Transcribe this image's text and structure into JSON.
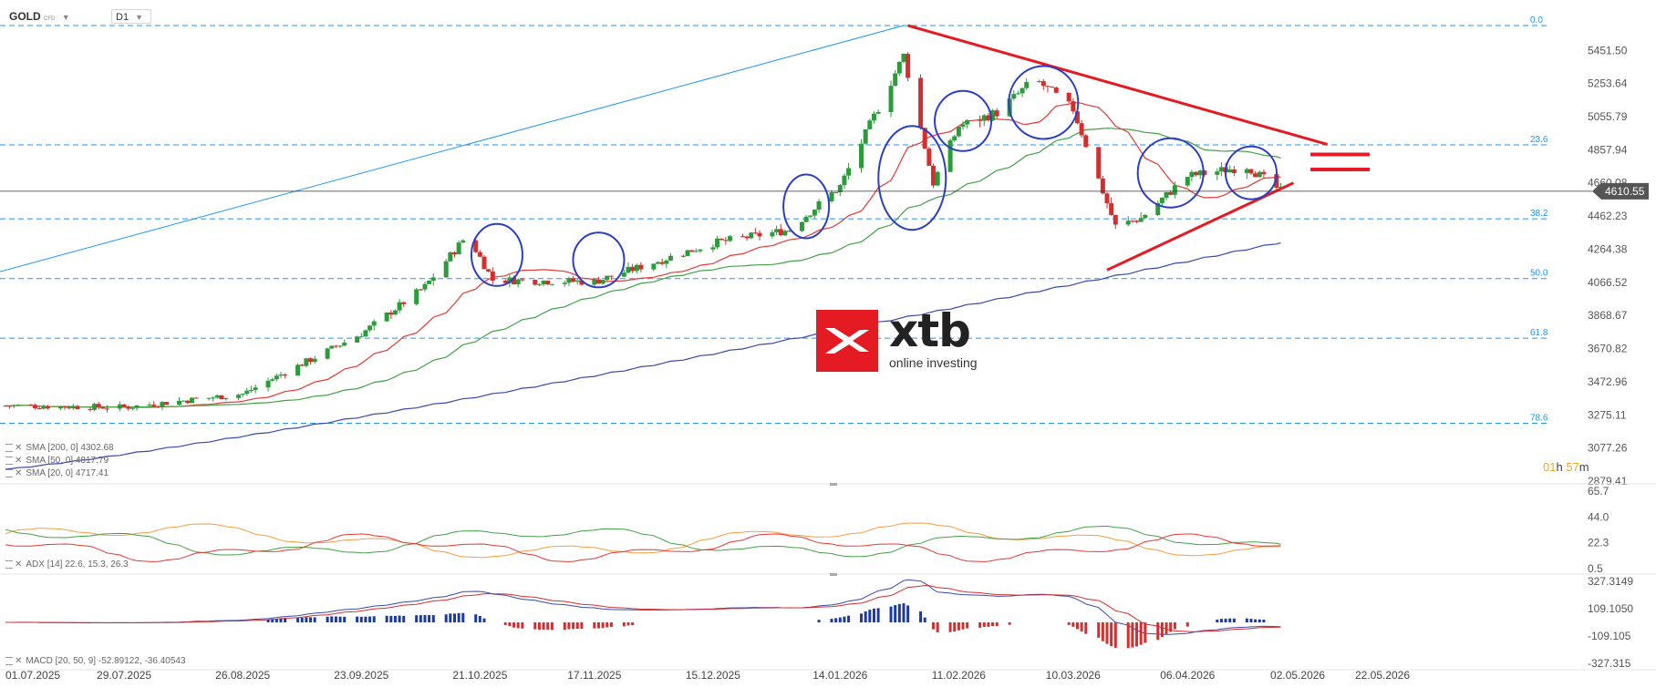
{
  "header": {
    "symbol": "GOLD",
    "symbol_tag": "CFD",
    "timeframe": "D1"
  },
  "price_axis": {
    "labels": [
      "5451.50",
      "5253.64",
      "5055.79",
      "4857.94",
      "4660.08",
      "4462.23",
      "4264.38",
      "4066.52",
      "3868.67",
      "3670.82",
      "3472.96",
      "3275.11",
      "3077.26",
      "2879.41"
    ],
    "current_price": "4610.55",
    "current_value": 4610.55
  },
  "fibonacci": [
    {
      "label": "0.0",
      "value": 5600
    },
    {
      "label": "23.6",
      "value": 4887
    },
    {
      "label": "38.2",
      "value": 4446
    },
    {
      "label": "50.0",
      "value": 4089
    },
    {
      "label": "61.8",
      "value": 3733
    },
    {
      "label": "78.6",
      "value": 3225
    }
  ],
  "indicators_legend": {
    "sma200": "SMA [200, 0] 4302.68",
    "sma50": "SMA [50, 0] 4817.79",
    "sma20": "SMA [20, 0] 4717.41"
  },
  "adx": {
    "legend": "ADX [14] 22.6, 15.3, 26.3",
    "axis_labels": [
      "65.7",
      "44.0",
      "22.3",
      "0.5"
    ]
  },
  "macd": {
    "legend": "MACD [20, 50, 9] -52.89122, -36.40543",
    "axis_labels": [
      "327.3149",
      "109.1050",
      "-109.105",
      "-327.315"
    ]
  },
  "date_axis": [
    "01.07.2025",
    "29.07.2025",
    "26.08.2025",
    "23.09.2025",
    "21.10.2025",
    "17.11.2025",
    "15.12.2025",
    "14.01.2026",
    "11.02.2026",
    "10.03.2026",
    "06.04.2026",
    "02.05.2026",
    "22.05.2026"
  ],
  "timer": {
    "hours": "01",
    "h_unit": "h",
    "minutes": "57",
    "m_unit": "m"
  },
  "logo": {
    "brand": "xtb",
    "tagline": "online investing"
  },
  "colors": {
    "bull": "#2a9d3a",
    "bear": "#d32f2f",
    "sma20": "#e53935",
    "sma50": "#43a047",
    "sma200": "#3949ab",
    "fib": "#2196f3",
    "trend": "#e41b23",
    "circle": "#2c3ec4",
    "adx_orange": "#f59e42"
  },
  "chart_data": {
    "type": "candlestick",
    "symbol": "GOLD",
    "timeframe": "D1",
    "x_range": [
      "01.07.2025",
      "22.05.2026"
    ],
    "ylim": [
      2879.41,
      5600
    ],
    "grid": false,
    "price_path_points": [
      [
        "01.07.2025",
        3330
      ],
      [
        "29.07.2025",
        3320
      ],
      [
        "26.08.2025",
        3400
      ],
      [
        "23.09.2025",
        3760
      ],
      [
        "08.10.2025",
        4040
      ],
      [
        "18.10.2025",
        4350
      ],
      [
        "24.10.2025",
        4080
      ],
      [
        "17.11.2025",
        4070
      ],
      [
        "15.12.2025",
        4300
      ],
      [
        "02.01.2026",
        4380
      ],
      [
        "14.01.2026",
        4640
      ],
      [
        "29.01.2026",
        5420
      ],
      [
        "05.02.2026",
        4660
      ],
      [
        "11.02.2026",
        5000
      ],
      [
        "20.02.2026",
        5080
      ],
      [
        "01.03.2026",
        5280
      ],
      [
        "10.03.2026",
        5100
      ],
      [
        "20.03.2026",
        4400
      ],
      [
        "26.03.2026",
        4450
      ],
      [
        "06.04.2026",
        4700
      ],
      [
        "20.04.2026",
        4760
      ],
      [
        "28.04.2026",
        4610
      ]
    ],
    "overlays": [
      {
        "name": "SMA [20, 0] 4717.41",
        "color": "#e53935"
      },
      {
        "name": "SMA [50, 0] 4817.79",
        "color": "#43a047"
      },
      {
        "name": "SMA [200, 0] 4302.68",
        "color": "#3949ab"
      }
    ],
    "fib_levels": [
      {
        "label": "0.0",
        "value": 5600
      },
      {
        "label": "23.6",
        "value": 4887
      },
      {
        "label": "38.2",
        "value": 4446
      },
      {
        "label": "50.0",
        "value": 4089
      },
      {
        "label": "61.8",
        "value": 3733
      },
      {
        "label": "78.6",
        "value": 3225
      }
    ],
    "triangle": {
      "upper_line": [
        [
          "30.01.2026",
          5600
        ],
        [
          "09.05.2026",
          4890
        ]
      ],
      "lower_line": [
        [
          "18.03.2026",
          4140
        ],
        [
          "01.05.2026",
          4660
        ]
      ]
    },
    "current_price": 4610.55
  }
}
